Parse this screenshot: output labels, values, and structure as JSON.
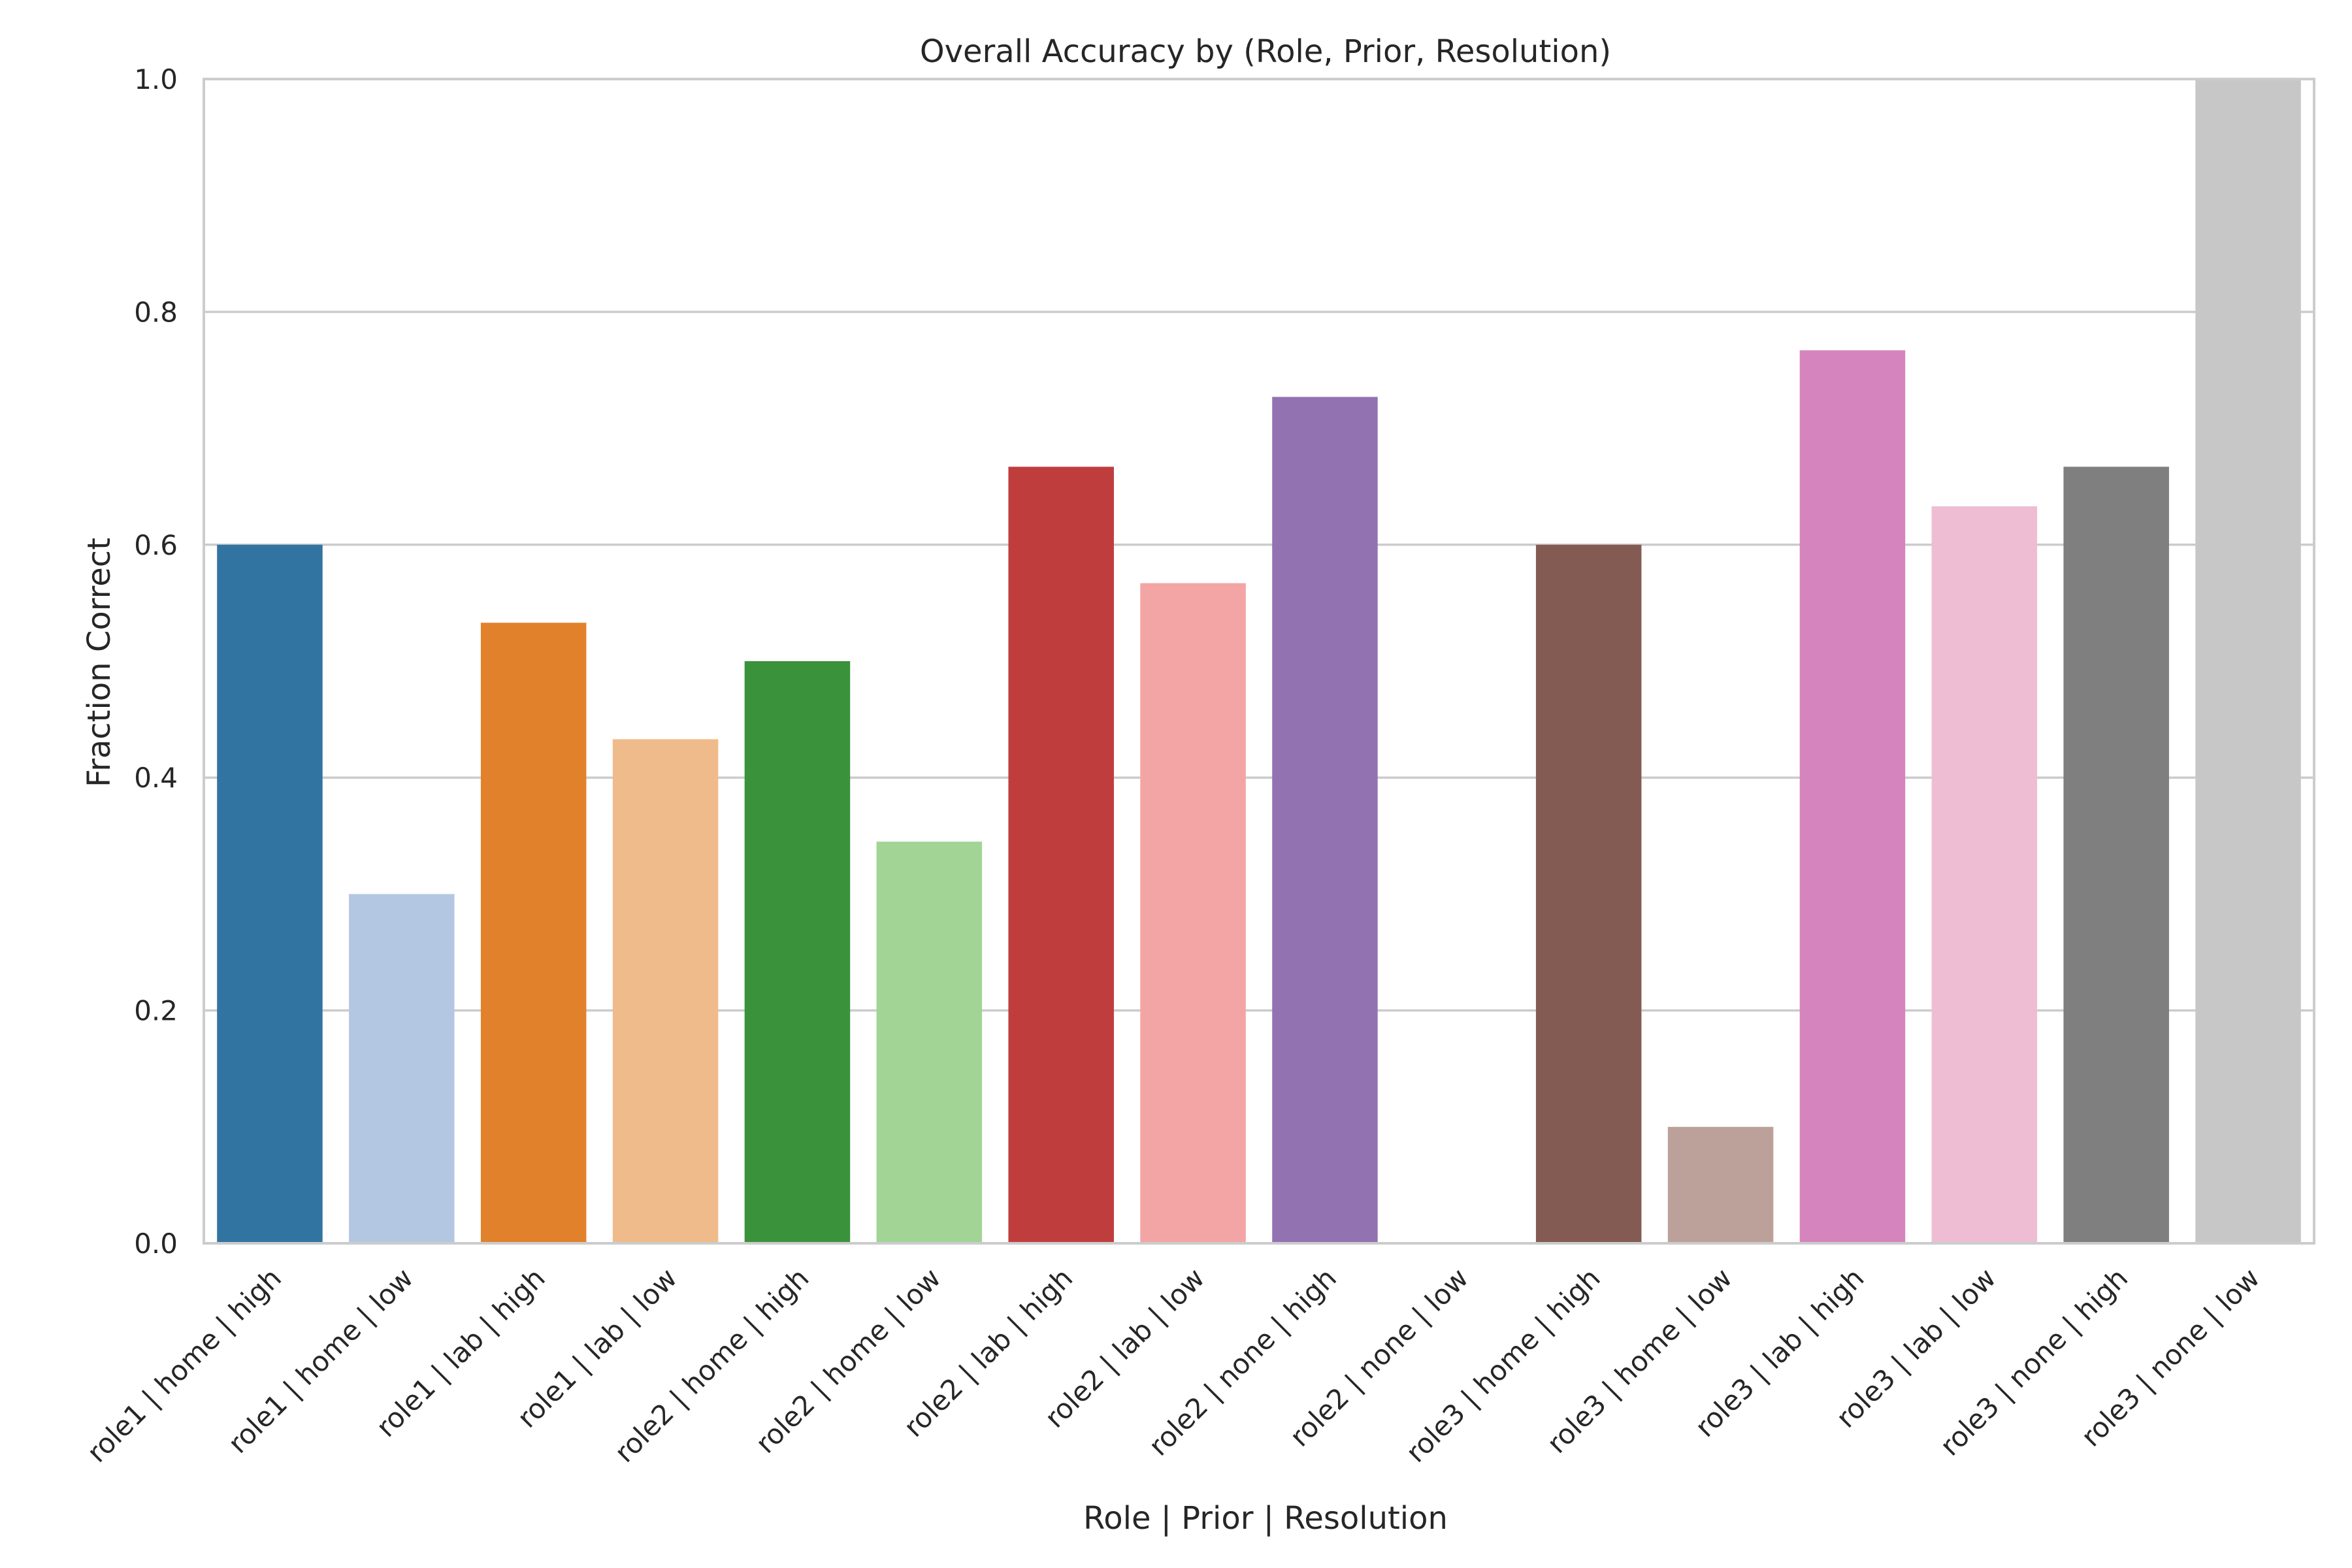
{
  "chart_data": {
    "type": "bar",
    "title": "Overall Accuracy by (Role, Prior, Resolution)",
    "xlabel": "Role | Prior | Resolution",
    "ylabel": "Fraction Correct",
    "ylim": [
      0,
      1.0
    ],
    "yticks": [
      "0.0",
      "0.2",
      "0.4",
      "0.6",
      "0.8",
      "1.0"
    ],
    "grid": "horizontal",
    "categories": [
      "role1 | home | high",
      "role1 | home | low",
      "role1 | lab | high",
      "role1 | lab | low",
      "role2 | home | high",
      "role2 | home | low",
      "role2 | lab | high",
      "role2 | lab | low",
      "role2 | none | high",
      "role2 | none | low",
      "role3 | home | high",
      "role3 | home | low",
      "role3 | lab | high",
      "role3 | lab | low",
      "role3 | none | high",
      "role3 | none | low"
    ],
    "values": [
      0.6,
      0.3,
      0.533,
      0.433,
      0.5,
      0.345,
      0.667,
      0.567,
      0.727,
      0.0,
      0.6,
      0.1,
      0.767,
      0.633,
      0.667,
      1.0
    ],
    "colors": [
      "#3274a1",
      "#b3c7e2",
      "#e1812c",
      "#efbb8a",
      "#3a923a",
      "#a1d495",
      "#c03d3e",
      "#f2a5a4",
      "#9372b2",
      "#ffffff",
      "#845b53",
      "#bca09a",
      "#d684bd",
      "#eebdd4",
      "#7f7f7f",
      "#c7c7c7"
    ]
  }
}
